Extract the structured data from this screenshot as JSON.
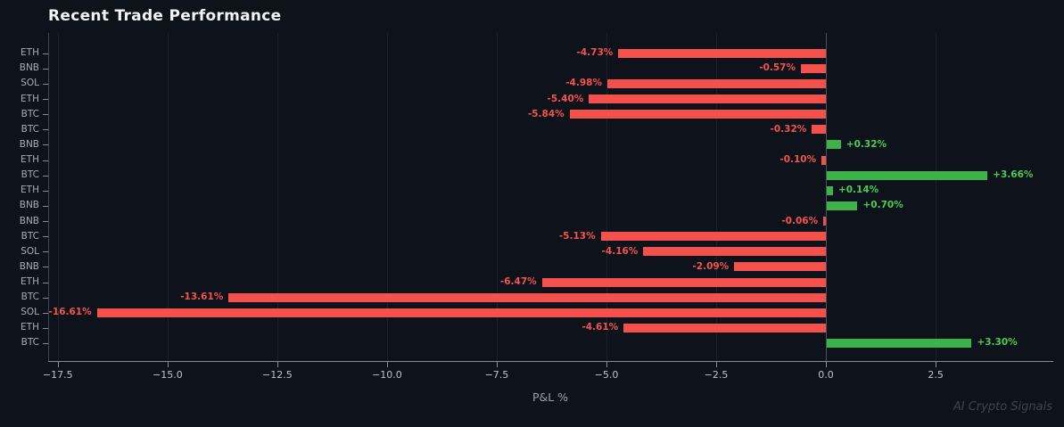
{
  "chart_data": {
    "type": "bar",
    "orientation": "horizontal",
    "title": "Recent Trade Performance",
    "xlabel": "P&L %",
    "watermark": "AI Crypto Signals",
    "categories": [
      "ETH",
      "BNB",
      "SOL",
      "ETH",
      "BTC",
      "BTC",
      "BNB",
      "ETH",
      "BTC",
      "ETH",
      "BNB",
      "BNB",
      "BTC",
      "SOL",
      "BNB",
      "ETH",
      "BTC",
      "SOL",
      "ETH",
      "BTC"
    ],
    "values": [
      -4.73,
      -0.57,
      -4.98,
      -5.4,
      -5.84,
      -0.32,
      0.32,
      -0.1,
      3.66,
      0.14,
      0.7,
      -0.06,
      -5.13,
      -4.16,
      -2.09,
      -6.47,
      -13.61,
      -16.61,
      -4.61,
      3.3
    ],
    "value_labels": [
      "-4.73%",
      "-0.57%",
      "-4.98%",
      "-5.40%",
      "-5.84%",
      "-0.32%",
      "+0.32%",
      "-0.10%",
      "+3.66%",
      "+0.14%",
      "+0.70%",
      "-0.06%",
      "-5.13%",
      "-4.16%",
      "-2.09%",
      "-6.47%",
      "-13.61%",
      "-16.61%",
      "-4.61%",
      "+3.30%"
    ],
    "x_ticks": [
      -17.5,
      -15.0,
      -12.5,
      -10.0,
      -7.5,
      -5.0,
      -2.5,
      0.0,
      2.5
    ],
    "x_tick_labels": [
      "−17.5",
      "−15.0",
      "−12.5",
      "−10.0",
      "−7.5",
      "−5.0",
      "−2.5",
      "0.0",
      "2.5"
    ],
    "xlim": [
      -17.72,
      5.16
    ],
    "grid": true,
    "legend": "none",
    "colors": {
      "positive_bar": "#3db24a",
      "negative_bar": "#f4514c",
      "positive_label": "#4ccb55",
      "negative_label": "#f4544e",
      "background": "#0e121b"
    }
  }
}
